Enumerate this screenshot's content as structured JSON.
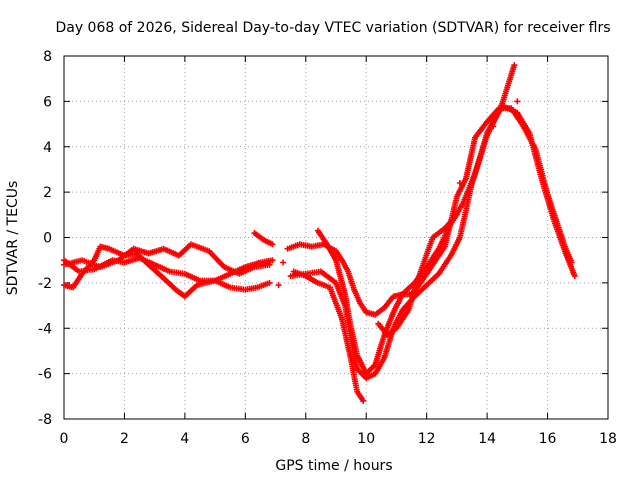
{
  "chart_data": {
    "type": "scatter",
    "title": "Day 068 of 2026, Sidereal Day-to-day VTEC variation (SDTVAR) for receiver flrs",
    "xlabel": "GPS time / hours",
    "ylabel": "SDTVAR / TECUs",
    "xlim": [
      0,
      18
    ],
    "ylim": [
      -8,
      8
    ],
    "xticks": [
      0,
      2,
      4,
      6,
      8,
      10,
      12,
      14,
      16,
      18
    ],
    "yticks": [
      -8,
      -6,
      -4,
      -2,
      0,
      2,
      4,
      6,
      8
    ],
    "grid": true,
    "marker": "+",
    "color": "#ff0000",
    "series": [
      {
        "name": "trace-1",
        "x": [
          0.0,
          0.5,
          1.0,
          1.3,
          1.6,
          2.0,
          2.5,
          3.0,
          3.5,
          4.0,
          4.5,
          5.0,
          5.5,
          6.0,
          6.5,
          6.9
        ],
        "y": [
          -1.0,
          -1.5,
          -1.4,
          -1.2,
          -1.0,
          -1.1,
          -0.9,
          -1.2,
          -1.5,
          -1.6,
          -1.9,
          -1.9,
          -1.6,
          -1.3,
          -1.1,
          -1.0
        ]
      },
      {
        "name": "trace-2",
        "x": [
          0.0,
          0.3,
          0.6,
          1.0,
          1.2,
          1.5,
          2.0,
          2.4,
          2.8,
          3.3,
          3.7,
          4.0,
          4.4,
          5.0,
          5.5,
          6.0,
          6.4,
          6.8
        ],
        "y": [
          -2.1,
          -2.2,
          -1.6,
          -1.0,
          -0.4,
          -0.5,
          -0.8,
          -0.7,
          -1.2,
          -1.8,
          -2.3,
          -2.6,
          -2.1,
          -1.9,
          -2.2,
          -2.3,
          -2.2,
          -2.0
        ]
      },
      {
        "name": "trace-3",
        "x": [
          0.0,
          0.6,
          1.2,
          1.8,
          2.3,
          2.8,
          3.3,
          3.8,
          4.2,
          4.8,
          5.3,
          5.8,
          6.3,
          6.8
        ],
        "y": [
          -1.2,
          -1.0,
          -1.3,
          -1.0,
          -0.5,
          -0.7,
          -0.5,
          -0.8,
          -0.3,
          -0.6,
          -1.3,
          -1.6,
          -1.3,
          -1.2
        ]
      },
      {
        "name": "trace-4",
        "x": [
          6.3,
          6.6,
          6.9
        ],
        "y": [
          0.2,
          -0.1,
          -0.3
        ]
      },
      {
        "name": "trace-5",
        "x": [
          7.4,
          7.8,
          8.2,
          8.6,
          9.0,
          9.2,
          9.4,
          9.6,
          9.8,
          10.0,
          10.3,
          10.6,
          10.9,
          11.2,
          11.5,
          11.8,
          12.2,
          12.6,
          13.0,
          13.3,
          13.6,
          14.0,
          14.4,
          14.8,
          15.2,
          15.6,
          16.0,
          16.3,
          16.6,
          16.8
        ],
        "y": [
          -0.5,
          -0.3,
          -0.4,
          -0.3,
          -0.6,
          -1.0,
          -1.5,
          -2.3,
          -2.9,
          -3.3,
          -3.4,
          -3.1,
          -2.6,
          -2.5,
          -2.5,
          -2.0,
          -1.2,
          -0.4,
          1.8,
          2.6,
          4.4,
          5.1,
          5.7,
          5.7,
          4.9,
          3.9,
          1.9,
          0.7,
          -0.5,
          -1.1
        ]
      },
      {
        "name": "trace-6",
        "x": [
          7.5,
          8.0,
          8.5,
          9.0,
          9.3,
          9.5,
          9.7,
          10.0,
          10.3,
          10.6,
          10.9,
          11.2,
          11.6,
          12.0,
          12.4,
          12.8,
          13.1,
          13.5,
          14.0,
          14.5,
          14.9
        ],
        "y": [
          -1.7,
          -1.6,
          -1.5,
          -2.0,
          -3.0,
          -4.5,
          -5.8,
          -6.2,
          -6.0,
          -5.3,
          -4.0,
          -3.2,
          -2.6,
          -2.1,
          -1.6,
          -0.8,
          0.0,
          2.4,
          4.5,
          5.9,
          7.6
        ]
      },
      {
        "name": "trace-7",
        "x": [
          8.4,
          8.7,
          9.0,
          9.3,
          9.5,
          9.7,
          10.0,
          10.3,
          10.6,
          10.9,
          11.2,
          11.6,
          12.0,
          12.4,
          12.8,
          13.2,
          13.6,
          14.0,
          14.5,
          15.0,
          15.4,
          15.8,
          16.2,
          16.6,
          16.9
        ],
        "y": [
          0.3,
          -0.3,
          -1.0,
          -2.5,
          -4.0,
          -5.2,
          -6.0,
          -5.6,
          -4.3,
          -3.3,
          -2.5,
          -2.0,
          -1.3,
          -0.5,
          0.6,
          1.5,
          2.8,
          4.6,
          5.8,
          5.5,
          4.6,
          2.6,
          0.8,
          -0.7,
          -1.7
        ]
      },
      {
        "name": "trace-8",
        "x": [
          7.6,
          8.0,
          8.4,
          8.8,
          9.2,
          9.5,
          9.7,
          9.9
        ],
        "y": [
          -1.5,
          -1.7,
          -2.0,
          -2.2,
          -3.6,
          -5.4,
          -6.8,
          -7.2
        ]
      },
      {
        "name": "trace-9",
        "x": [
          10.4,
          10.7,
          11.0,
          11.4,
          11.8,
          12.2,
          12.6,
          13.0
        ],
        "y": [
          -3.8,
          -4.3,
          -4.0,
          -3.2,
          -1.5,
          0.0,
          0.4,
          1.0
        ]
      }
    ]
  }
}
